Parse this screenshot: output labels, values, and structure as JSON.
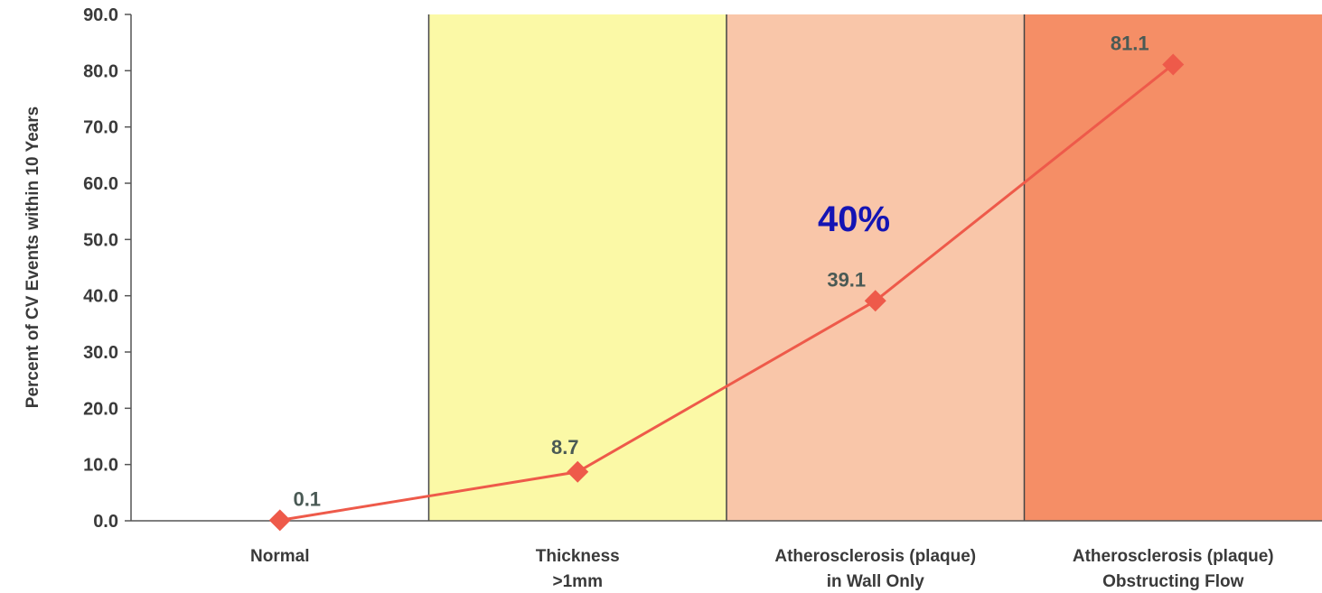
{
  "chart_data": {
    "type": "line",
    "categories": [
      [
        "Normal"
      ],
      [
        "Thickness",
        ">1mm"
      ],
      [
        "Atherosclerosis (plaque)",
        "in Wall Only"
      ],
      [
        "Atherosclerosis (plaque)",
        "Obstructing Flow"
      ]
    ],
    "series": [
      {
        "values": [
          0.1,
          8.7,
          39.1,
          81.1
        ],
        "data_labels": [
          "0.1",
          "8.7",
          "39.1",
          "81.1"
        ],
        "color": "#ee5a4a",
        "marker": "diamond"
      }
    ],
    "title": "",
    "xlabel": "",
    "ylabel": "Percent of CV Events within 10 Years",
    "ylim": [
      0,
      90
    ],
    "yticks": [
      "0.0",
      "10.0",
      "20.0",
      "30.0",
      "40.0",
      "50.0",
      "60.0",
      "70.0",
      "80.0",
      "90.0"
    ],
    "band_colors": [
      "#ffffff",
      "#fbf9a6",
      "#f9c6a9",
      "#f58e66"
    ],
    "annotation": {
      "text": "40%",
      "color": "#1414b4"
    },
    "grid": false,
    "legend": "none"
  }
}
